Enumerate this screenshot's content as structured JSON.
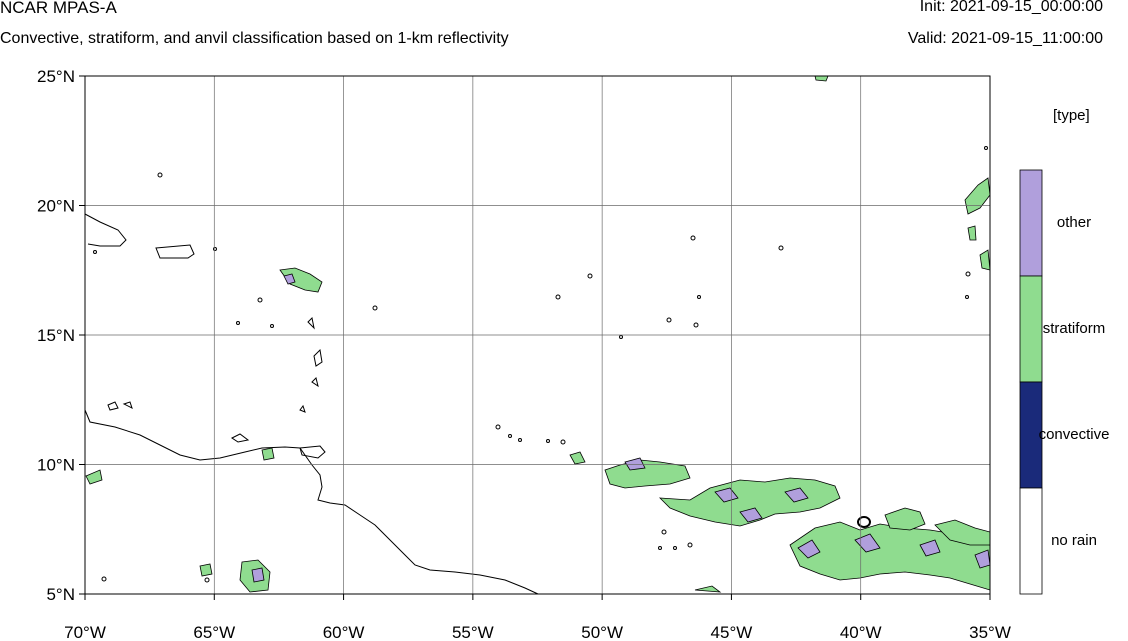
{
  "header": {
    "model_title": "NCAR MPAS-A",
    "subtitle": "Convective, stratiform, and anvil classification based on 1-km reflectivity",
    "init": "Init: 2021-09-15_00:00:00",
    "valid": "Valid: 2021-09-15_11:00:00"
  },
  "map": {
    "extent": {
      "lon": [
        -70,
        -35
      ],
      "lat": [
        5,
        25
      ]
    },
    "lat_ticks": [
      {
        "value": 25,
        "label": "25°N"
      },
      {
        "value": 20,
        "label": "20°N"
      },
      {
        "value": 15,
        "label": "15°N"
      },
      {
        "value": 10,
        "label": "10°N"
      },
      {
        "value": 5,
        "label": "5°N"
      }
    ],
    "lon_ticks": [
      {
        "value": -70,
        "label": "70°W"
      },
      {
        "value": -65,
        "label": "65°W"
      },
      {
        "value": -60,
        "label": "60°W"
      },
      {
        "value": -55,
        "label": "55°W"
      },
      {
        "value": -50,
        "label": "50°W"
      },
      {
        "value": -45,
        "label": "45°W"
      },
      {
        "value": -40,
        "label": "40°W"
      },
      {
        "value": -35,
        "label": "35°W"
      }
    ],
    "grid": true,
    "colors": {
      "other": "#b09fdc",
      "stratiform": "#8fdc8f",
      "convective": "#1a2a7a",
      "no_rain": "#ffffff",
      "coast": "#000000",
      "grid": "#6a6a6a"
    }
  },
  "legend": {
    "title": "[type]",
    "items": [
      {
        "label": "other",
        "color": "#b09fdc"
      },
      {
        "label": "stratiform",
        "color": "#8fdc8f"
      },
      {
        "label": "convective",
        "color": "#1a2a7a"
      },
      {
        "label": "no rain",
        "color": "#ffffff"
      }
    ]
  }
}
